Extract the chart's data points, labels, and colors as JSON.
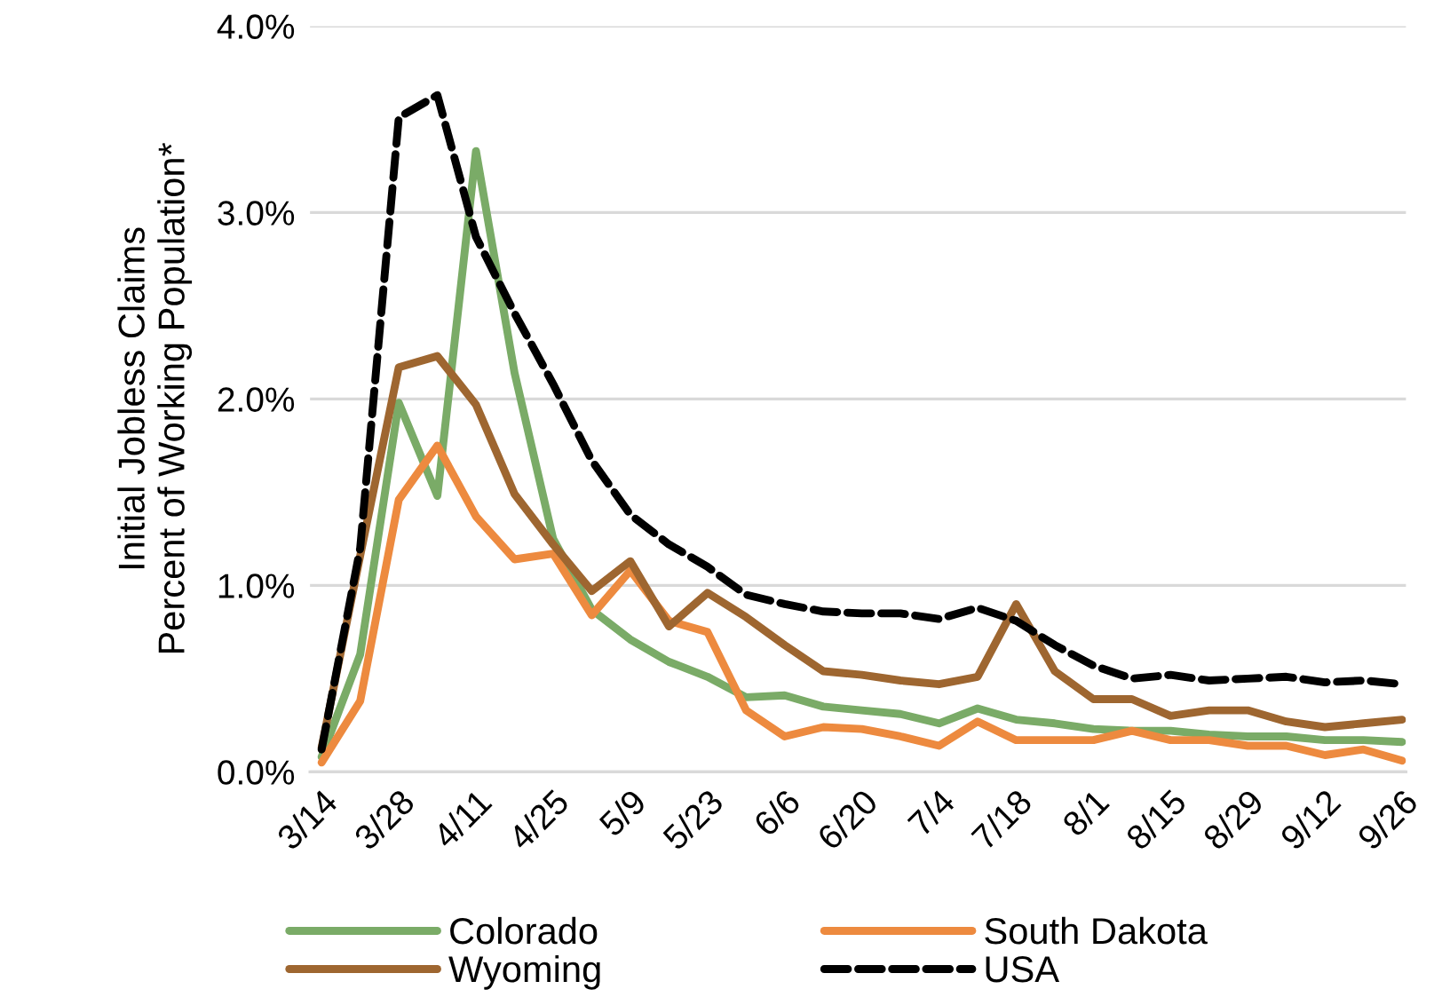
{
  "chart_data": {
    "type": "line",
    "ylabel": "Initial Jobless Claims\nPercent of Working Population*",
    "categories": [
      "3/14",
      null,
      "3/28",
      null,
      "4/11",
      null,
      "4/25",
      null,
      "5/9",
      null,
      "5/23",
      null,
      "6/6",
      null,
      "6/20",
      null,
      "7/4",
      null,
      "7/18",
      null,
      "8/1",
      null,
      "8/15",
      null,
      "8/29",
      null,
      "9/12",
      null,
      "9/26"
    ],
    "series": [
      {
        "name": "Colorado",
        "color": "#7aab67",
        "line_style": "solid",
        "values": [
          0.08,
          0.63,
          1.98,
          1.48,
          3.33,
          2.14,
          1.25,
          0.87,
          0.71,
          0.59,
          0.51,
          0.4,
          0.41,
          0.35,
          0.33,
          0.31,
          0.26,
          0.34,
          0.28,
          0.26,
          0.23,
          0.22,
          0.22,
          0.2,
          0.19,
          0.19,
          0.17,
          0.17,
          0.16
        ]
      },
      {
        "name": "South Dakota",
        "color": "#ed8a3f",
        "line_style": "solid",
        "values": [
          0.05,
          0.38,
          1.46,
          1.75,
          1.37,
          1.14,
          1.17,
          0.84,
          1.08,
          0.81,
          0.75,
          0.33,
          0.19,
          0.24,
          0.23,
          0.19,
          0.14,
          0.27,
          0.17,
          0.17,
          0.17,
          0.22,
          0.17,
          0.17,
          0.14,
          0.14,
          0.09,
          0.12,
          0.06
        ]
      },
      {
        "name": "Wyoming",
        "color": "#9e6630",
        "line_style": "solid",
        "values": [
          0.13,
          1.16,
          2.17,
          2.23,
          1.97,
          1.49,
          1.22,
          0.97,
          1.13,
          0.78,
          0.96,
          0.83,
          0.68,
          0.54,
          0.52,
          0.49,
          0.47,
          0.51,
          0.9,
          0.54,
          0.39,
          0.39,
          0.3,
          0.33,
          0.33,
          0.27,
          0.24,
          0.26,
          0.28
        ]
      },
      {
        "name": "USA",
        "color": "#000000",
        "line_style": "dashed",
        "values": [
          0.12,
          1.2,
          3.51,
          3.63,
          2.87,
          2.46,
          2.08,
          1.67,
          1.38,
          1.22,
          1.1,
          0.95,
          0.9,
          0.86,
          0.85,
          0.85,
          0.82,
          0.88,
          0.81,
          0.68,
          0.57,
          0.5,
          0.52,
          0.49,
          0.5,
          0.51,
          0.48,
          0.49,
          0.47
        ]
      }
    ],
    "ylim": [
      0,
      4
    ],
    "yticks": [
      {
        "value": 0,
        "label": "0.0%"
      },
      {
        "value": 1,
        "label": "1.0%"
      },
      {
        "value": 2,
        "label": "2.0%"
      },
      {
        "value": 3,
        "label": "3.0%"
      },
      {
        "value": 4,
        "label": "4.0%"
      }
    ],
    "grid": "y",
    "legend": "bottom",
    "marker": "none"
  }
}
